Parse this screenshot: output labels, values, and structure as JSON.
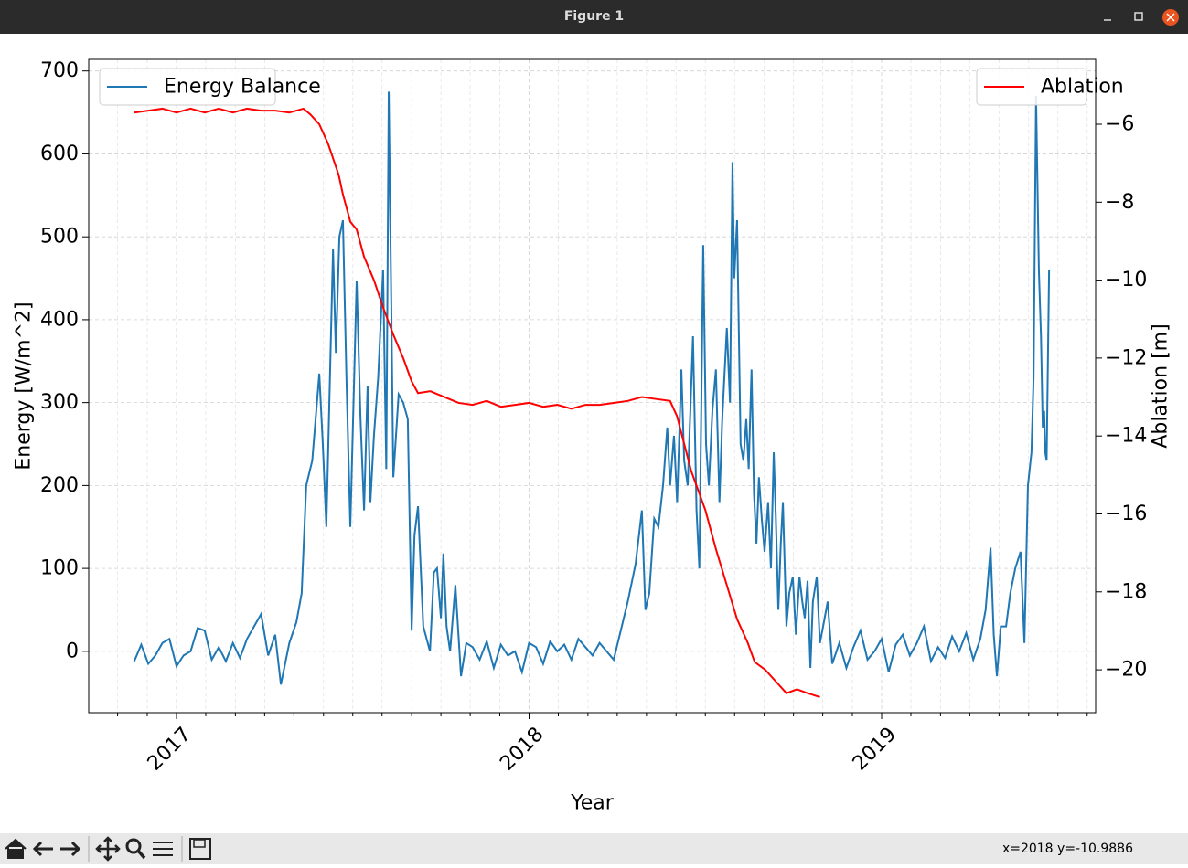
{
  "window": {
    "title": "Figure 1",
    "status": "x=2018 y=-10.9886"
  },
  "chart_data": {
    "type": "line",
    "xlabel": "Year",
    "ylabel": "Energy [W/m^2]",
    "y2label": "Ablation [m]",
    "xlim": [
      2016.751,
      2019.607
    ],
    "xticks": [
      2017,
      2018,
      2019
    ],
    "xminorticks": [
      2016.833,
      2016.917,
      2017.083,
      2017.167,
      2017.25,
      2017.333,
      2017.417,
      2017.5,
      2017.583,
      2017.667,
      2017.75,
      2017.833,
      2017.917,
      2018.083,
      2018.167,
      2018.25,
      2018.333,
      2018.417,
      2018.5,
      2018.583,
      2018.667,
      2018.75,
      2018.833,
      2018.917,
      2019.083,
      2019.167,
      2019.25,
      2019.333,
      2019.417,
      2019.5,
      2019.583
    ],
    "ylim": [
      -74,
      714
    ],
    "yticks": [
      0,
      100,
      200,
      300,
      400,
      500,
      600,
      700
    ],
    "y2lim": [
      -21.1,
      -4.335
    ],
    "y2ticks": [
      {
        "value": -20,
        "label": "−20"
      },
      {
        "value": -18,
        "label": "−18"
      },
      {
        "value": -16,
        "label": "−16"
      },
      {
        "value": -14,
        "label": "−14"
      },
      {
        "value": -12,
        "label": "−12"
      },
      {
        "value": -10,
        "label": "−10"
      },
      {
        "value": -8,
        "label": "−8"
      },
      {
        "value": -6,
        "label": "−6"
      }
    ],
    "grid": true,
    "series": [
      {
        "name": "Energy Balance",
        "color": "#1f77b4",
        "legend": "upper left",
        "x": [
          2016.88,
          2016.9,
          2016.92,
          2016.94,
          2016.96,
          2016.98,
          2017.0,
          2017.02,
          2017.04,
          2017.06,
          2017.08,
          2017.1,
          2017.12,
          2017.14,
          2017.16,
          2017.18,
          2017.2,
          2017.22,
          2017.24,
          2017.26,
          2017.28,
          2017.296,
          2017.32,
          2017.34,
          2017.355,
          2017.368,
          2017.385,
          2017.405,
          2017.415,
          2017.425,
          2017.444,
          2017.452,
          2017.462,
          2017.472,
          2017.482,
          2017.493,
          2017.511,
          2017.522,
          2017.532,
          2017.542,
          2017.55,
          2017.56,
          2017.572,
          2017.586,
          2017.595,
          2017.602,
          2017.615,
          2017.63,
          2017.643,
          2017.656,
          2017.667,
          2017.675,
          2017.685,
          2017.7,
          2017.719,
          2017.73,
          2017.739,
          2017.75,
          2017.757,
          2017.766,
          2017.776,
          2017.791,
          2017.807,
          2017.822,
          2017.84,
          2017.86,
          2017.88,
          2017.9,
          2017.92,
          2017.94,
          2017.96,
          2017.98,
          2018.0,
          2018.02,
          2018.04,
          2018.06,
          2018.08,
          2018.1,
          2018.12,
          2018.14,
          2018.16,
          2018.18,
          2018.2,
          2018.22,
          2018.24,
          2018.263,
          2018.28,
          2018.302,
          2018.32,
          2018.33,
          2018.341,
          2018.355,
          2018.367,
          2018.38,
          2018.392,
          2018.4,
          2018.411,
          2018.42,
          2018.432,
          2018.44,
          2018.45,
          2018.465,
          2018.475,
          2018.483,
          2018.494,
          2018.502,
          2018.51,
          2018.52,
          2018.53,
          2018.54,
          2018.548,
          2018.561,
          2018.57,
          2018.577,
          2018.582,
          2018.59,
          2018.6,
          2018.608,
          2018.616,
          2018.623,
          2018.631,
          2018.638,
          2018.645,
          2018.652,
          2018.66,
          2018.668,
          2018.678,
          2018.686,
          2018.694,
          2018.7,
          2018.707,
          2018.714,
          2018.72,
          2018.73,
          2018.738,
          2018.748,
          2018.757,
          2018.767,
          2018.775,
          2018.782,
          2018.79,
          2018.798,
          2018.805,
          2018.816,
          2018.825,
          2018.834,
          2018.847,
          2018.86,
          2018.88,
          2018.9,
          2018.92,
          2018.94,
          2018.96,
          2018.98,
          2019.0,
          2019.02,
          2019.04,
          2019.06,
          2019.08,
          2019.1,
          2019.12,
          2019.14,
          2019.16,
          2019.18,
          2019.2,
          2019.22,
          2019.24,
          2019.26,
          2019.28,
          2019.295,
          2019.309,
          2019.318,
          2019.327,
          2019.338,
          2019.353,
          2019.365,
          2019.379,
          2019.394,
          2019.405,
          2019.415,
          2019.425,
          2019.431,
          2019.438,
          2019.446,
          2019.452,
          2019.457,
          2019.461,
          2019.464,
          2019.468,
          2019.475
        ],
        "values": [
          -12,
          8,
          -15,
          -5,
          10,
          15,
          -18,
          -5,
          0,
          28,
          25,
          -10,
          5,
          -12,
          10,
          -8,
          15,
          30,
          45,
          -5,
          20,
          -40,
          10,
          35,
          70,
          200,
          230,
          335,
          250,
          150,
          485,
          360,
          500,
          520,
          330,
          150,
          447,
          280,
          170,
          320,
          180,
          260,
          330,
          460,
          220,
          675,
          210,
          310,
          300,
          280,
          25,
          140,
          175,
          30,
          0,
          95,
          100,
          40,
          118,
          30,
          0,
          80,
          -30,
          10,
          5,
          -10,
          12,
          -20,
          8,
          -5,
          0,
          -25,
          10,
          5,
          -15,
          12,
          0,
          8,
          -10,
          15,
          5,
          -5,
          10,
          0,
          -10,
          30,
          60,
          105,
          170,
          50,
          70,
          160,
          150,
          200,
          270,
          200,
          260,
          180,
          340,
          230,
          200,
          380,
          170,
          100,
          490,
          250,
          200,
          290,
          340,
          180,
          280,
          390,
          300,
          590,
          450,
          520,
          250,
          230,
          280,
          220,
          340,
          190,
          130,
          210,
          160,
          120,
          180,
          100,
          240,
          160,
          50,
          130,
          180,
          30,
          70,
          90,
          20,
          90,
          60,
          40,
          85,
          -20,
          60,
          90,
          10,
          30,
          60,
          -15,
          10,
          -20,
          5,
          25,
          -10,
          0,
          15,
          -25,
          8,
          20,
          -5,
          10,
          30,
          -12,
          5,
          -8,
          18,
          0,
          22,
          -10,
          15,
          50,
          125,
          20,
          -30,
          30,
          30,
          70,
          100,
          120,
          10,
          200,
          240,
          330,
          670,
          460,
          380,
          270,
          290,
          240,
          230,
          460
        ]
      },
      {
        "name": "Ablation",
        "color": "#ff0000",
        "axis": "y2",
        "legend": "upper right",
        "x": [
          2016.88,
          2016.92,
          2016.96,
          2017.0,
          2017.04,
          2017.08,
          2017.12,
          2017.16,
          2017.2,
          2017.24,
          2017.28,
          2017.32,
          2017.36,
          2017.38,
          2017.405,
          2017.43,
          2017.46,
          2017.472,
          2017.493,
          2017.511,
          2017.532,
          2017.56,
          2017.586,
          2017.615,
          2017.643,
          2017.667,
          2017.685,
          2017.72,
          2017.76,
          2017.8,
          2017.84,
          2017.88,
          2017.92,
          2017.96,
          2018.0,
          2018.04,
          2018.08,
          2018.12,
          2018.16,
          2018.2,
          2018.24,
          2018.28,
          2018.32,
          2018.36,
          2018.4,
          2018.42,
          2018.44,
          2018.46,
          2018.48,
          2018.5,
          2018.53,
          2018.56,
          2018.59,
          2018.62,
          2018.64,
          2018.67,
          2018.7,
          2018.73,
          2018.76,
          2018.79,
          2018.825
        ],
        "values": [
          -5.7,
          -5.65,
          -5.6,
          -5.7,
          -5.6,
          -5.7,
          -5.6,
          -5.7,
          -5.6,
          -5.65,
          -5.65,
          -5.7,
          -5.6,
          -5.75,
          -6.0,
          -6.5,
          -7.3,
          -7.8,
          -8.5,
          -8.7,
          -9.4,
          -10.0,
          -10.7,
          -11.4,
          -12.0,
          -12.6,
          -12.9,
          -12.85,
          -13.0,
          -13.15,
          -13.2,
          -13.1,
          -13.25,
          -13.2,
          -13.15,
          -13.25,
          -13.2,
          -13.3,
          -13.2,
          -13.2,
          -13.15,
          -13.1,
          -13.0,
          -13.05,
          -13.1,
          -13.5,
          -14.2,
          -14.9,
          -15.4,
          -15.9,
          -16.9,
          -17.8,
          -18.7,
          -19.3,
          -19.8,
          -20.0,
          -20.3,
          -20.6,
          -20.5,
          -20.6,
          -20.7
        ]
      }
    ]
  }
}
